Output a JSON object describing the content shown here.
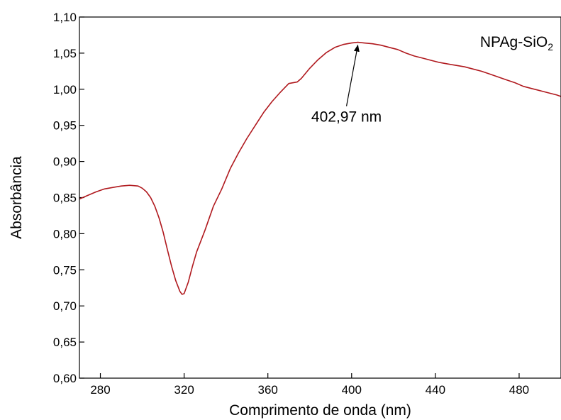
{
  "chart_data": {
    "type": "line",
    "xlabel": "Comprimento de onda (nm)",
    "ylabel": "Absorbância",
    "xlim": [
      270,
      500
    ],
    "ylim": [
      0.6,
      1.1
    ],
    "x_ticks": [
      280,
      320,
      360,
      400,
      440,
      480
    ],
    "x_tick_labels": [
      "280",
      "320",
      "360",
      "400",
      "440",
      "480"
    ],
    "y_ticks": [
      0.6,
      0.65,
      0.7,
      0.75,
      0.8,
      0.85,
      0.9,
      0.95,
      1.0,
      1.05,
      1.1
    ],
    "y_tick_labels": [
      "0,60",
      "0,65",
      "0,70",
      "0,75",
      "0,80",
      "0,85",
      "0,90",
      "0,95",
      "1,00",
      "1,05",
      "1,10"
    ],
    "grid": false,
    "series": [
      {
        "name": "NPAg-SiO2",
        "color": "#b0191e",
        "x": [
          270,
          274,
          278,
          282,
          286,
          290,
          294,
          298,
          300,
          302,
          304,
          306,
          308,
          310,
          312,
          314,
          316,
          318,
          319,
          320,
          322,
          324,
          326,
          330,
          334,
          338,
          342,
          346,
          350,
          354,
          358,
          362,
          366,
          370,
          374,
          376,
          380,
          384,
          388,
          392,
          396,
          400,
          403,
          406,
          410,
          414,
          418,
          422,
          426,
          430,
          434,
          438,
          442,
          446,
          450,
          454,
          458,
          462,
          466,
          470,
          474,
          478,
          482,
          486,
          490,
          494,
          498,
          500
        ],
        "y": [
          0.848,
          0.853,
          0.858,
          0.862,
          0.864,
          0.866,
          0.867,
          0.866,
          0.863,
          0.858,
          0.85,
          0.838,
          0.822,
          0.802,
          0.778,
          0.755,
          0.735,
          0.72,
          0.716,
          0.717,
          0.733,
          0.755,
          0.775,
          0.805,
          0.838,
          0.862,
          0.89,
          0.912,
          0.932,
          0.95,
          0.968,
          0.983,
          0.996,
          1.008,
          1.01,
          1.015,
          1.029,
          1.041,
          1.051,
          1.058,
          1.062,
          1.064,
          1.065,
          1.064,
          1.063,
          1.061,
          1.058,
          1.055,
          1.05,
          1.046,
          1.043,
          1.04,
          1.037,
          1.035,
          1.033,
          1.031,
          1.028,
          1.025,
          1.021,
          1.017,
          1.013,
          1.009,
          1.004,
          1.001,
          0.998,
          0.995,
          0.992,
          0.99
        ]
      }
    ],
    "legend": {
      "label_main": "NPAg-SiO",
      "label_sub": "2",
      "placement": "top-right"
    },
    "annotations": [
      {
        "text": "402,97 nm",
        "x": 402.97,
        "y": 1.065
      }
    ]
  }
}
